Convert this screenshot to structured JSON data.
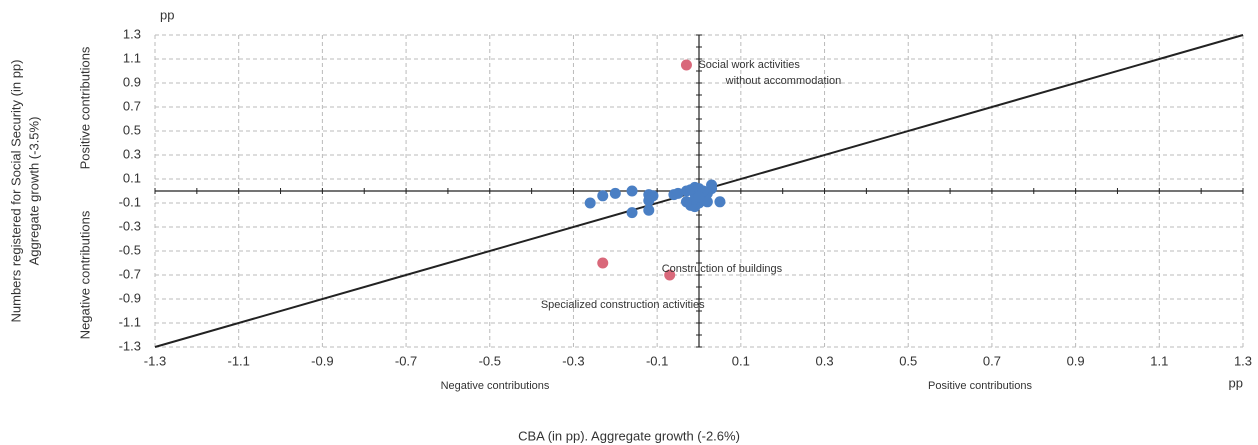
{
  "chart_data": {
    "type": "scatter",
    "y_unit": "pp",
    "x_unit": "pp",
    "y_label": [
      "Numbers registered for Social Security (in pp)",
      "Aggregate growth (-3.5%)"
    ],
    "x_label": "CBA (in pp). Aggregate growth (-2.6%)",
    "y_positive": "Positive contributions",
    "y_negative": "Negative contributions",
    "x_negative": "Negative contributions",
    "x_positive": "Positive contributions",
    "xlim": [
      -1.3,
      1.3
    ],
    "ylim": [
      -1.3,
      1.3
    ],
    "xticks": [
      -1.3,
      -1.1,
      -0.9,
      -0.7,
      -0.5,
      -0.3,
      -0.1,
      0.1,
      0.3,
      0.5,
      0.7,
      0.9,
      1.1,
      1.3
    ],
    "yticks": [
      1.3,
      1.1,
      0.9,
      0.7,
      0.5,
      0.3,
      0.1,
      -0.1,
      -0.3,
      -0.5,
      -0.7,
      -0.9,
      -1.1,
      -1.3
    ],
    "grid": true,
    "series": [
      {
        "color": "#4a7fc4",
        "x": [
          -0.26,
          -0.23,
          -0.2,
          -0.16,
          -0.16,
          -0.12,
          -0.12,
          -0.11,
          -0.12,
          -0.06,
          -0.05,
          -0.03,
          -0.02,
          -0.01,
          -0.01,
          -0.005,
          -0.02,
          -0.01,
          0.0,
          0.01,
          0.02,
          0.03,
          0.02,
          0.05,
          0.03,
          0.0,
          0.01,
          -0.01,
          -0.03,
          0.0
        ],
        "values": [
          -0.1,
          -0.04,
          -0.02,
          0.0,
          -0.18,
          -0.03,
          -0.16,
          -0.04,
          -0.08,
          -0.03,
          -0.02,
          0.0,
          0.01,
          0.03,
          -0.02,
          -0.06,
          -0.12,
          -0.13,
          -0.1,
          -0.04,
          -0.02,
          0.02,
          -0.09,
          -0.09,
          0.05,
          0.02,
          0.0,
          -0.07,
          -0.09,
          -0.05
        ]
      },
      {
        "color": "#d9687a",
        "x": [
          -0.03,
          -0.23,
          -0.07
        ],
        "values": [
          1.05,
          -0.6,
          -0.7
        ],
        "annotations": [
          "Social work activities without accommodation",
          "Specialized construction activities",
          "Construction of buildings"
        ]
      }
    ]
  }
}
